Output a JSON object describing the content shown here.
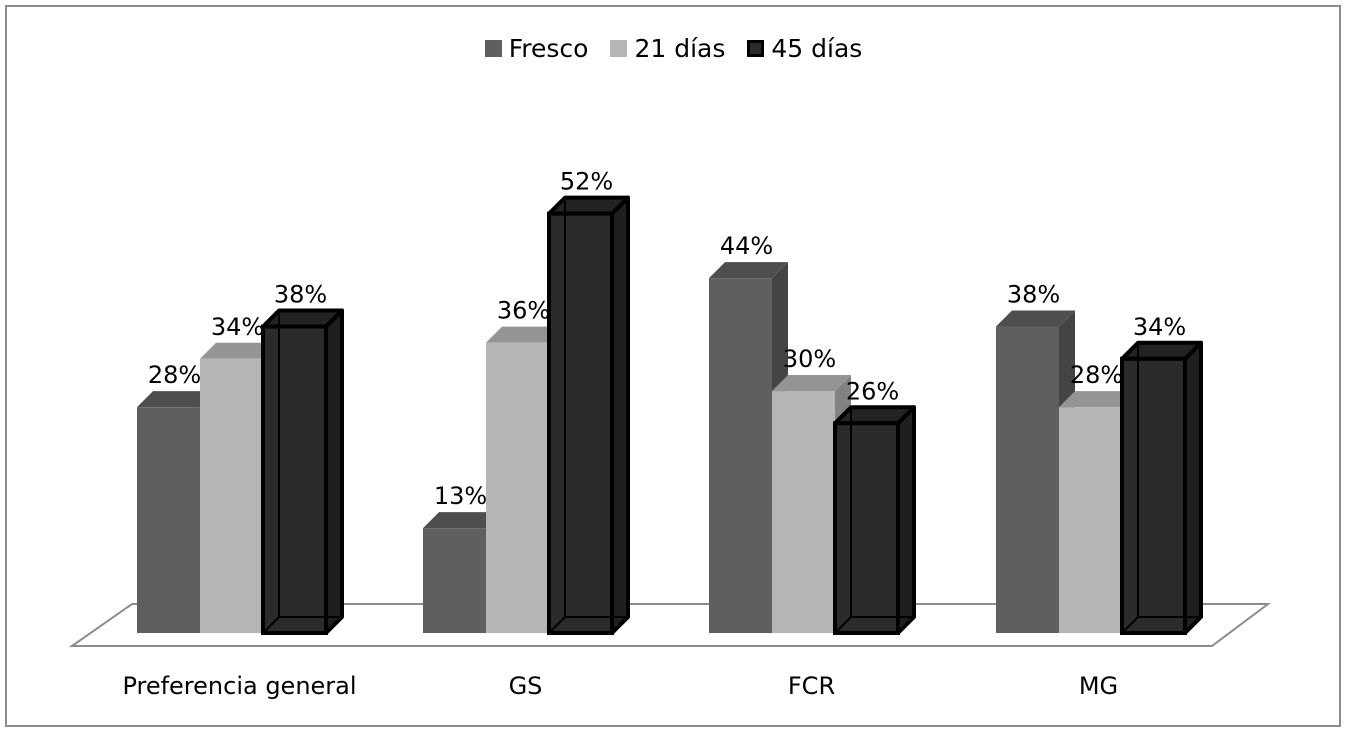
{
  "chart_data": {
    "type": "bar",
    "categories": [
      "Preferencia general",
      "GS",
      "FCR",
      "MG"
    ],
    "series": [
      {
        "name": "Fresco",
        "values": [
          28,
          13,
          44,
          38
        ],
        "labels": [
          "28%",
          "13%",
          "44%",
          "38%"
        ],
        "color": "#5f5f5f"
      },
      {
        "name": "21 días",
        "values": [
          34,
          36,
          30,
          28
        ],
        "labels": [
          "34%",
          "36%",
          "30%",
          "28%"
        ],
        "color": "#b5b5b5"
      },
      {
        "name": "45 días",
        "values": [
          38,
          52,
          26,
          34
        ],
        "labels": [
          "38%",
          "52%",
          "26%",
          "34%"
        ],
        "color": "#2b2b2b"
      }
    ],
    "ylim": [
      0,
      55
    ],
    "unit": "%",
    "legend_position": "top-center",
    "grid": false,
    "style": "3d-column"
  }
}
